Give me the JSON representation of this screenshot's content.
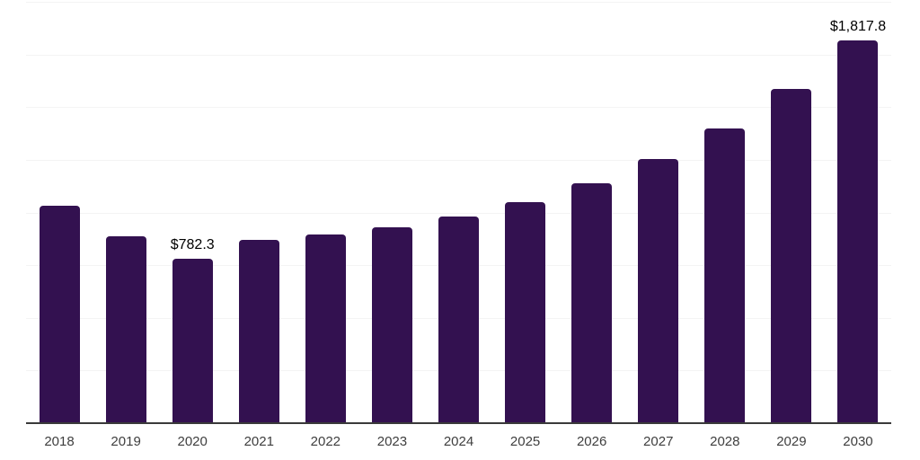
{
  "chart_data": {
    "type": "bar",
    "title": "",
    "xlabel": "",
    "ylabel": "",
    "categories": [
      "2018",
      "2019",
      "2020",
      "2021",
      "2022",
      "2023",
      "2024",
      "2025",
      "2026",
      "2027",
      "2028",
      "2029",
      "2030"
    ],
    "values": [
      1034,
      889,
      782.3,
      871,
      897,
      931,
      981,
      1050,
      1139,
      1254,
      1399,
      1586,
      1817.8
    ],
    "data_labels": [
      "",
      "",
      "$782.3",
      "",
      "",
      "",
      "",
      "",
      "",
      "",
      "",
      "",
      "$1,817.8"
    ],
    "ylim": [
      0,
      2000
    ],
    "grid_step": 250,
    "grid": true,
    "legend": false,
    "colors": {
      "bar": "#331150",
      "gridline": "#f4f4f4",
      "axis_line": "#3a3a3a",
      "tick_label": "#3e3e3e",
      "data_label": "#000000",
      "background": "#ffffff"
    }
  }
}
